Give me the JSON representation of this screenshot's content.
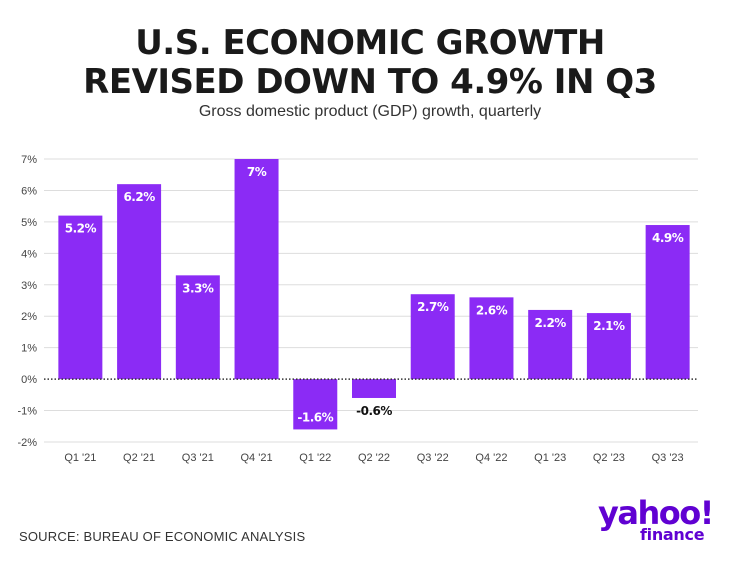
{
  "header": {
    "title_line1": "U.S. ECONOMIC GROWTH",
    "title_line2": "REVISED DOWN TO 4.9% IN Q3",
    "subtitle": "Gross domestic product (GDP) growth, quarterly"
  },
  "footer": {
    "source": "SOURCE: BUREAU OF ECONOMIC ANALYSIS",
    "logo_text": "yahoo!",
    "logo_subtext": "finance"
  },
  "colors": {
    "bar": "#8b2bf5",
    "grid": "#dddddd",
    "zero_line": "#333333",
    "logo": "#6001d2"
  },
  "chart_data": {
    "type": "bar",
    "title": "U.S. ECONOMIC GROWTH REVISED DOWN TO 4.9% IN Q3",
    "subtitle": "Gross domestic product (GDP) growth, quarterly",
    "xlabel": "",
    "ylabel": "",
    "categories": [
      "Q1 '21",
      "Q2 '21",
      "Q3 '21",
      "Q4 '21",
      "Q1 '22",
      "Q2 '22",
      "Q3 '22",
      "Q4 '22",
      "Q1 '23",
      "Q2 '23",
      "Q3 '23"
    ],
    "values": [
      5.2,
      6.2,
      3.3,
      7,
      -1.6,
      -0.6,
      2.7,
      2.6,
      2.2,
      2.1,
      4.9
    ],
    "labels": [
      "5.2%",
      "6.2%",
      "3.3%",
      "7%",
      "-1.6%",
      "-0.6%",
      "2.7%",
      "2.6%",
      "2.2%",
      "2.1%",
      "4.9%"
    ],
    "ylim": [
      -2,
      7
    ],
    "yticks": [
      7,
      6,
      5,
      4,
      3,
      2,
      1,
      0,
      -1,
      -2
    ],
    "ytick_labels": [
      "7%",
      "6%",
      "5%",
      "4%",
      "3%",
      "2%",
      "1%",
      "0%",
      "-1%",
      "-2%"
    ],
    "grid": true,
    "legend": "none"
  }
}
